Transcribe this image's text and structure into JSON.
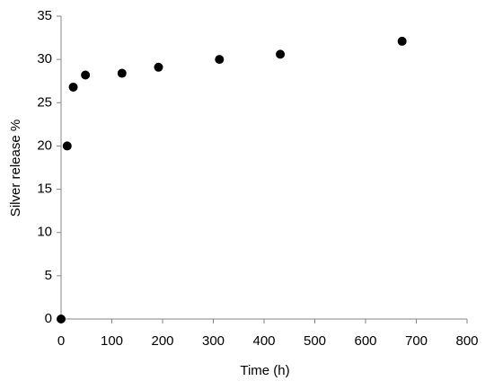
{
  "chart_data": {
    "type": "scatter",
    "x_label": "Time (h)",
    "y_label": "Silver release %",
    "series": [
      {
        "color": "#000000",
        "x": [
          0,
          12,
          24,
          48,
          120,
          192,
          312,
          432,
          672
        ],
        "values": [
          0,
          20,
          26.8,
          28.2,
          28.4,
          29.1,
          30,
          30.6,
          32.1
        ]
      }
    ],
    "xlim": [
      0,
      800
    ],
    "xticks": [
      0,
      100,
      200,
      300,
      400,
      500,
      600,
      700,
      800
    ],
    "ylim": [
      0,
      35
    ],
    "yticks": [
      0,
      5,
      10,
      15,
      20,
      25,
      30,
      35
    ],
    "grid": false
  }
}
